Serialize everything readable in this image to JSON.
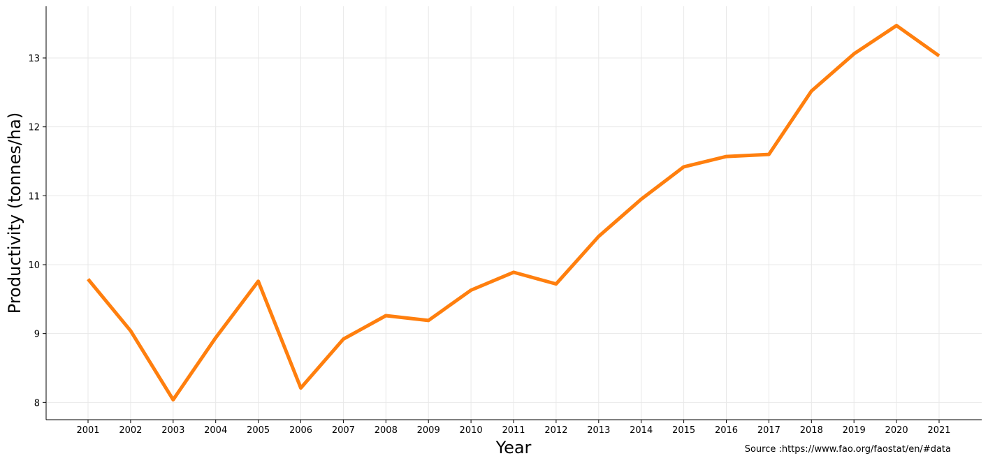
{
  "chart_data": {
    "type": "line",
    "title": "",
    "xlabel": "Year",
    "ylabel": "Productivity (tonnes/ha)",
    "source": "Source :https://www.fao.org/faostat/en/#data",
    "x": [
      "2001",
      "2002",
      "2003",
      "2004",
      "2005",
      "2006",
      "2007",
      "2008",
      "2009",
      "2010",
      "2011",
      "2012",
      "2013",
      "2014",
      "2015",
      "2016",
      "2017",
      "2018",
      "2019",
      "2020",
      "2021"
    ],
    "series": [
      {
        "values": [
          9.79,
          9.04,
          8.04,
          8.94,
          9.76,
          8.21,
          8.92,
          9.26,
          9.19,
          9.63,
          9.89,
          9.72,
          10.41,
          10.95,
          11.42,
          11.57,
          11.6,
          12.52,
          13.06,
          13.47,
          13.03
        ],
        "color": "#ff7f0e"
      }
    ],
    "yticks": [
      8,
      9,
      10,
      11,
      12,
      13
    ],
    "ylim": [
      7.75,
      13.75
    ],
    "grid": true,
    "legend": "none"
  }
}
